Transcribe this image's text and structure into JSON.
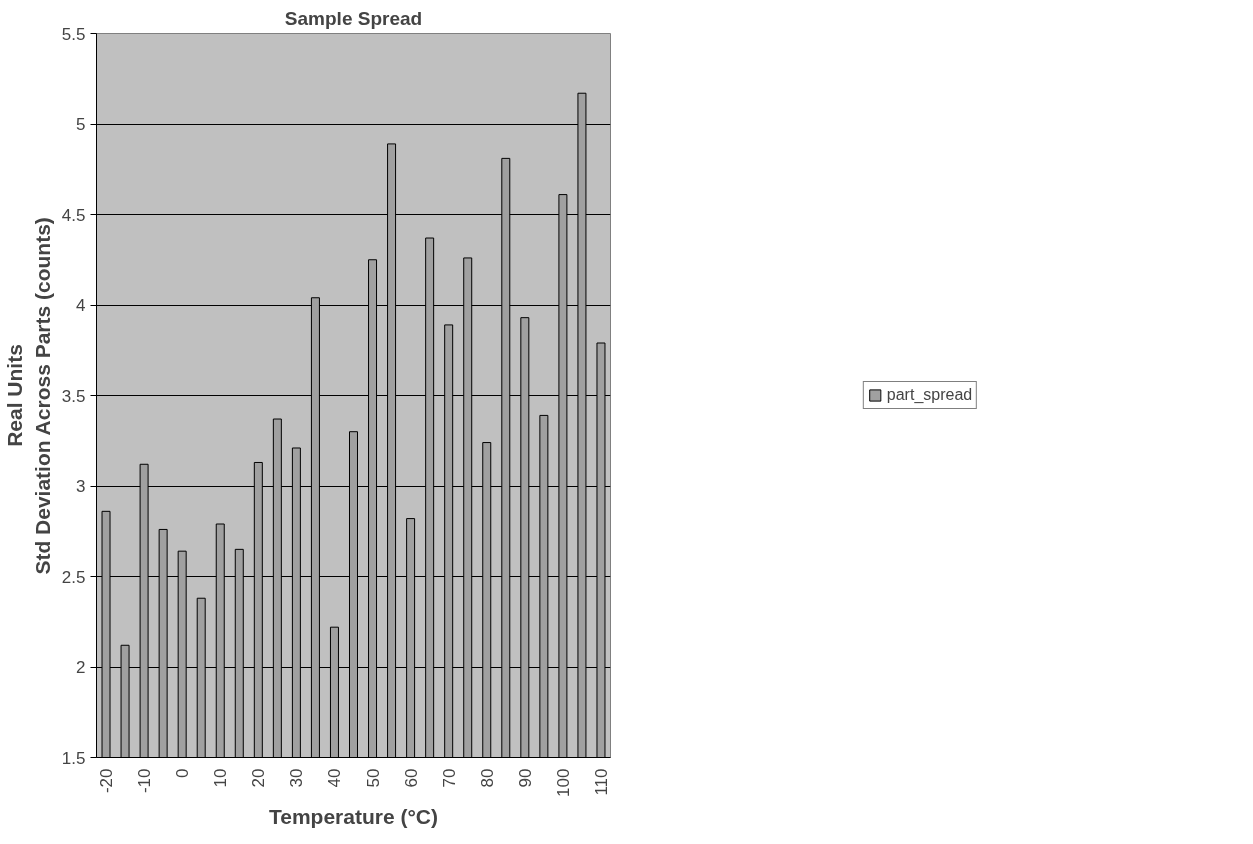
{
  "chart_data": {
    "type": "bar",
    "title": "Sample Spread",
    "xlabel": "Temperature (°C)",
    "ylabel": "Real Units\nStd Deviation Across Parts (counts)",
    "categories": [
      "-20",
      null,
      "-10",
      null,
      "0",
      null,
      "10",
      null,
      "20",
      null,
      "30",
      null,
      "40",
      null,
      "50",
      null,
      "60",
      null,
      "70",
      null,
      "80",
      null,
      "90",
      null,
      "100",
      null,
      "110"
    ],
    "series": [
      {
        "name": "part_spread",
        "color": "#a0a0a0",
        "values": [
          2.86,
          2.12,
          3.12,
          2.76,
          2.64,
          2.38,
          2.79,
          2.65,
          3.13,
          3.37,
          3.21,
          4.04,
          2.22,
          3.3,
          4.25,
          4.89,
          2.82,
          4.37,
          3.89,
          4.26,
          3.24,
          4.81,
          3.93,
          3.39,
          4.61,
          5.17,
          3.79
        ]
      }
    ],
    "ylim": [
      1.5,
      5.5
    ],
    "yticks": [
      1.5,
      2,
      2.5,
      3,
      3.5,
      4,
      4.5,
      5,
      5.5
    ],
    "grid": "y",
    "legend": "right"
  }
}
